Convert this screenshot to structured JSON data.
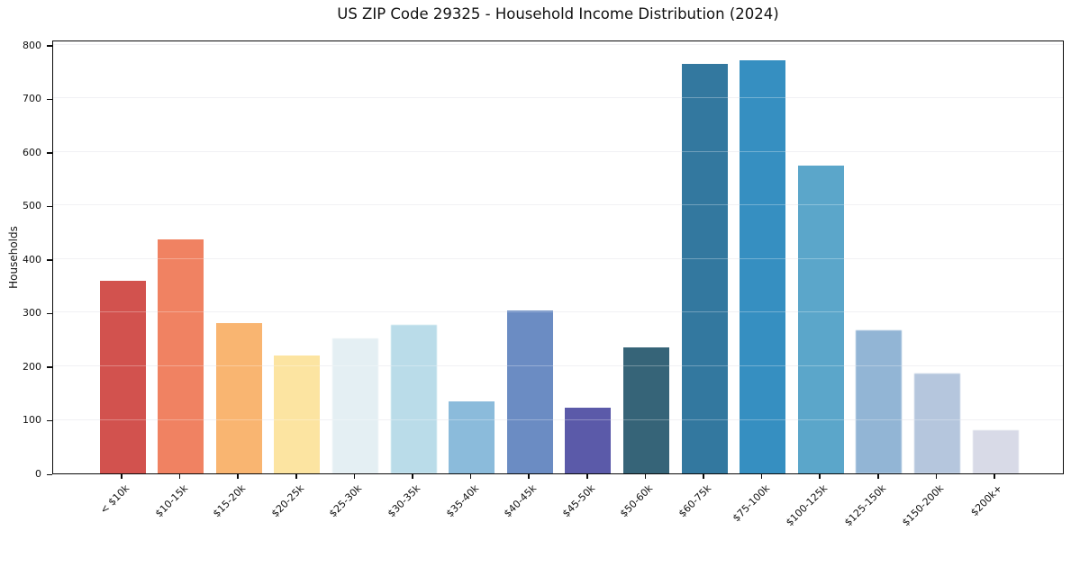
{
  "chart_data": {
    "type": "bar",
    "title": "US ZIP Code 29325 - Household Income Distribution (2024)",
    "xlabel": "",
    "ylabel": "Households",
    "categories": [
      "< $10k",
      "$10-15k",
      "$15-20k",
      "$20-25k",
      "$25-30k",
      "$30-35k",
      "$35-40k",
      "$40-45k",
      "$45-50k",
      "$50-60k",
      "$60-75k",
      "$75-100k",
      "$100-125k",
      "$125-150k",
      "$150-200k",
      "$200k+"
    ],
    "values": [
      360,
      437,
      280,
      220,
      252,
      278,
      135,
      305,
      122,
      235,
      765,
      772,
      574,
      267,
      187,
      81
    ],
    "bar_colors": [
      "#d2524e",
      "#f08262",
      "#f9b571",
      "#fce4a1",
      "#e4eff3",
      "#badce9",
      "#8bbbdb",
      "#6b8cc3",
      "#5b5aa9",
      "#366478",
      "#33789f",
      "#368fc1",
      "#5ba6ca",
      "#92b5d5",
      "#b5c6dd",
      "#d8dae7"
    ],
    "soft_bars": [
      4,
      5,
      13,
      14,
      15
    ],
    "ylim": [
      0,
      810
    ],
    "yticks": [
      0,
      100,
      200,
      300,
      400,
      500,
      600,
      700,
      800
    ],
    "grid": "horizontal",
    "grid_color": "#ebebf0",
    "legend": "none",
    "background_color": "#ffffff"
  }
}
